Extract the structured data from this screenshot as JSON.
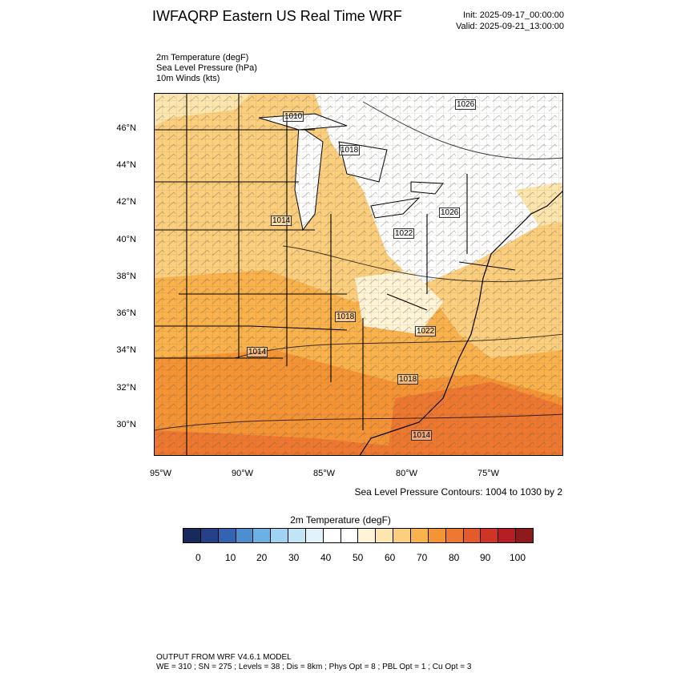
{
  "title": "IWFAQRP Eastern US Real Time WRF",
  "init": "Init: 2025-09-17_00:00:00",
  "valid": "Valid: 2025-09-21_13:00:00",
  "variables": [
    "2m Temperature   (degF)",
    "Sea Level Pressure   (hPa)",
    "10m Winds   (kts)"
  ],
  "lat_labels": [
    "46°N",
    "44°N",
    "42°N",
    "40°N",
    "38°N",
    "36°N",
    "34°N",
    "32°N",
    "30°N"
  ],
  "lon_labels": [
    "95°W",
    "90°W",
    "85°W",
    "80°W",
    "75°W"
  ],
  "slp_labels": [
    "1010",
    "1026",
    "1018",
    "1014",
    "1026",
    "1022",
    "1018",
    "1022",
    "1014",
    "1018",
    "1014"
  ],
  "contour_note": "Sea Level Pressure Contours: 1004 to 1030 by 2",
  "colorbar": {
    "title": "2m Temperature  (degF)",
    "tick_labels": [
      "0",
      "10",
      "20",
      "30",
      "40",
      "50",
      "60",
      "70",
      "80",
      "90",
      "100"
    ],
    "colors": [
      "#182a5c",
      "#24418a",
      "#3364b1",
      "#4b8fd1",
      "#6cb1e3",
      "#9fd3f1",
      "#c2e5f6",
      "#e1f2fb",
      "#ffffff",
      "#ffffff",
      "#fff4d6",
      "#fde6ae",
      "#fbcf7d",
      "#f9b24c",
      "#f59434",
      "#ee7830",
      "#e45a2a",
      "#cf3526",
      "#b51f24",
      "#8f1a1c"
    ],
    "field_colors": {
      "cool": "#ffffff",
      "mild": "#fde6ae",
      "warm": "#fbcf7d",
      "hot": "#f9b24c",
      "hotter": "#f59434",
      "hottest": "#ee7830"
    }
  },
  "footer": {
    "line1": "OUTPUT FROM WRF V4.6.1 MODEL",
    "line2": "WE = 310 ; SN = 275 ; Levels = 38 ; Dis = 8km ; Phys Opt = 8 ; PBL Opt = 1 ; Cu Opt = 3"
  }
}
